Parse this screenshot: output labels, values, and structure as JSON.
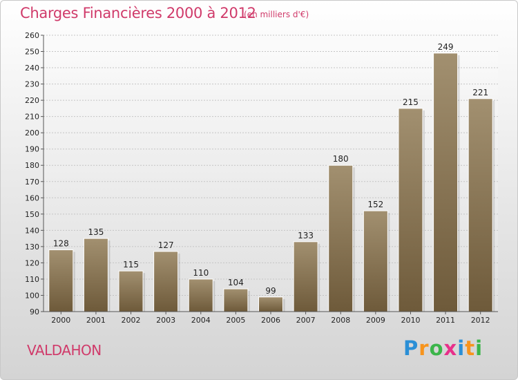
{
  "header": {
    "title": "Charges Financières 2000 à 2012",
    "subtitle": "(en milliers d'€)"
  },
  "footer": {
    "commune": "VALDAHON",
    "logo": [
      "P",
      "r",
      "o",
      "x",
      "i",
      "t",
      "i"
    ],
    "logo_colors": [
      "#2b8fd6",
      "#f7941d",
      "#3bb54a",
      "#e8308a",
      "#2b8fd6",
      "#f7941d",
      "#3bb54a"
    ]
  },
  "colors": {
    "bar_top": "#a29070",
    "bar_bottom": "#6e5a3a",
    "title": "#d03a6a"
  },
  "chart_data": {
    "type": "bar",
    "title": "Charges Financières 2000 à 2012",
    "categories": [
      "2000",
      "2001",
      "2002",
      "2003",
      "2004",
      "2005",
      "2006",
      "2007",
      "2008",
      "2009",
      "2010",
      "2011",
      "2012"
    ],
    "values": [
      128,
      135,
      115,
      127,
      110,
      104,
      99,
      133,
      180,
      152,
      215,
      249,
      221
    ],
    "value_labels": [
      "128",
      "135",
      "115",
      "127",
      "110",
      "104",
      "99",
      "133",
      "180",
      "152",
      "215",
      "249",
      "221"
    ],
    "ylim": [
      90,
      260
    ],
    "yticks": [
      "90",
      "100",
      "110",
      "120",
      "130",
      "140",
      "150",
      "160",
      "170",
      "180",
      "190",
      "200",
      "210",
      "220",
      "230",
      "240",
      "250",
      "260"
    ],
    "grid": true,
    "legend": "none"
  }
}
